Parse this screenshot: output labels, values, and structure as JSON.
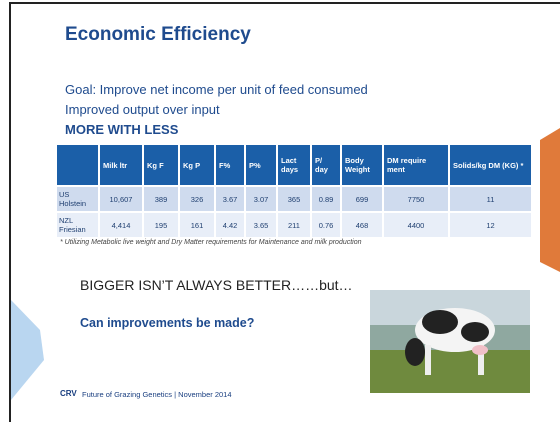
{
  "header": {
    "title": "Economic Efficiency"
  },
  "body": {
    "lines": [
      "Goal: Improve net income per unit of feed consumed",
      "Improved output over input"
    ],
    "emphasis": "MORE WITH LESS"
  },
  "table": {
    "header": [
      "",
      "Milk ltr",
      "Kg F",
      "Kg P",
      "F%",
      "P%",
      "Lact days",
      "P/ day",
      "Body Weight",
      "DM require ment",
      "Solids/kg DM (KG) *"
    ],
    "rows": [
      [
        "US Holstein",
        "10,607",
        "389",
        "326",
        "3.67",
        "3.07",
        "365",
        "0.89",
        "699",
        "7750",
        "11"
      ],
      [
        "NZL Friesian",
        "4,414",
        "195",
        "161",
        "4.42",
        "3.65",
        "211",
        "0.76",
        "468",
        "4400",
        "12"
      ]
    ],
    "footnote": "* Utilizing Metabolic live weight and Dry Matter requirements for Maintenance and milk production"
  },
  "statement": "BIGGER ISN’T ALWAYS BETTER……but…",
  "question": "Can improvements be made?",
  "footer": {
    "logo": "CRV",
    "text": "Future of Grazing Genetics | November 2014"
  }
}
